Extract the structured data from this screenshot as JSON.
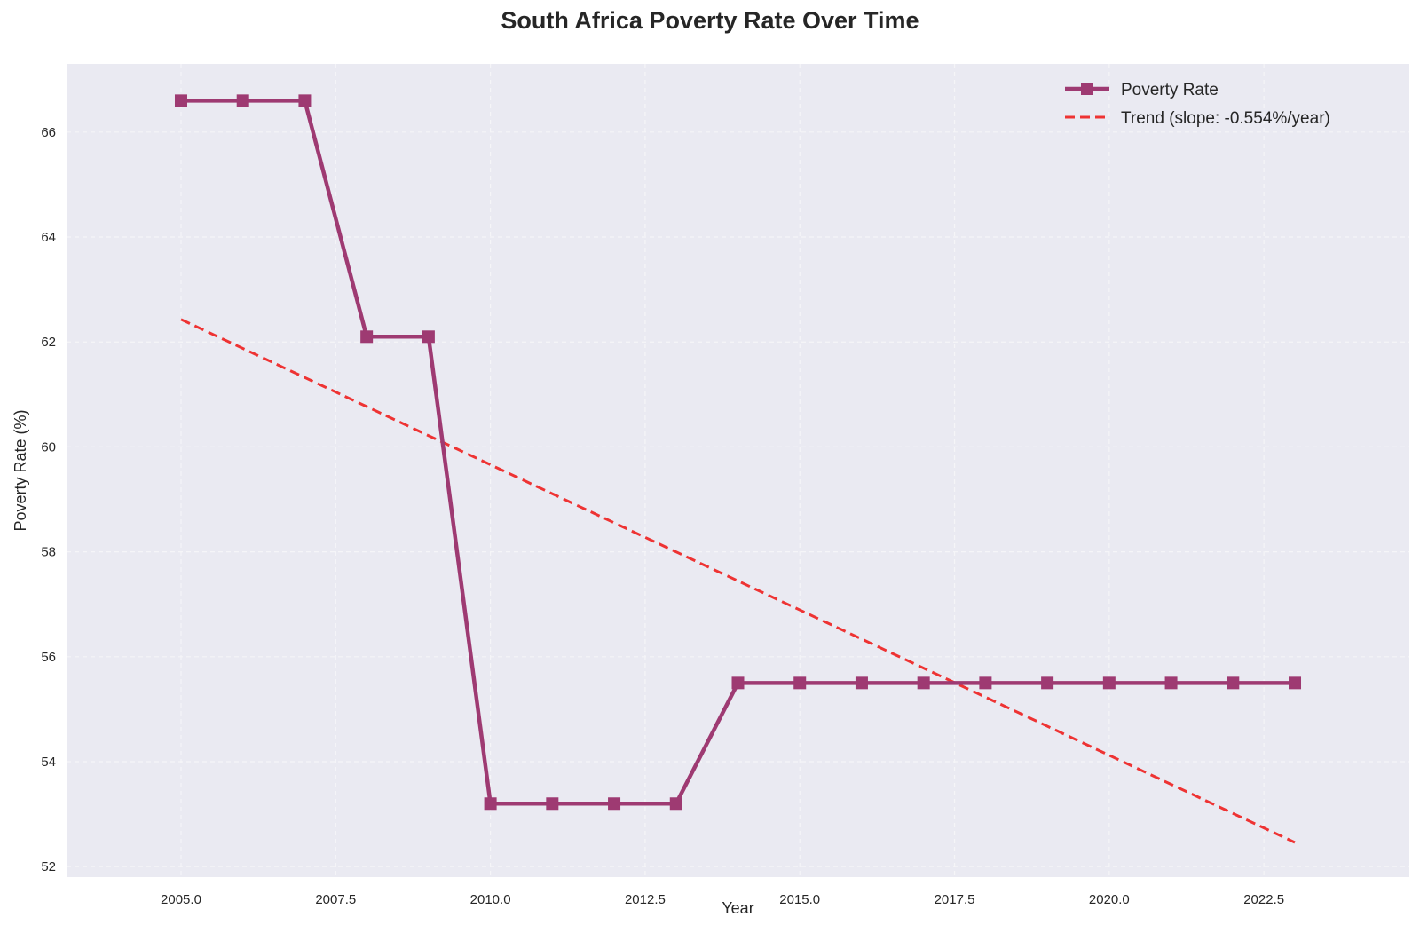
{
  "chart_data": {
    "type": "line",
    "title": "South Africa Poverty Rate Over Time",
    "xlabel": "Year",
    "ylabel": "Poverty Rate (%)",
    "xlim": [
      2003.15,
      2024.85
    ],
    "ylim": [
      51.8,
      67.3
    ],
    "x_ticks": [
      "2005.0",
      "2007.5",
      "2010.0",
      "2012.5",
      "2015.0",
      "2017.5",
      "2020.0",
      "2022.5"
    ],
    "y_ticks": [
      "52",
      "54",
      "56",
      "58",
      "60",
      "62",
      "64",
      "66"
    ],
    "grid": true,
    "legend_position": "top-right",
    "x": [
      2005,
      2006,
      2007,
      2008,
      2009,
      2010,
      2011,
      2012,
      2013,
      2014,
      2015,
      2016,
      2017,
      2018,
      2019,
      2020,
      2021,
      2022,
      2023
    ],
    "series": [
      {
        "name": "Poverty Rate",
        "style": "solid-square-markers",
        "color": "#9E3A72",
        "values": [
          66.6,
          66.6,
          66.6,
          62.1,
          62.1,
          53.2,
          53.2,
          53.2,
          53.2,
          55.5,
          55.5,
          55.5,
          55.5,
          55.5,
          55.5,
          55.5,
          55.5,
          55.5,
          55.5
        ]
      },
      {
        "name": "Trend (slope: -0.554%/year)",
        "style": "dashed",
        "color": "#EE3333",
        "x": [
          2005,
          2023
        ],
        "values": [
          62.43,
          52.46
        ]
      }
    ]
  },
  "colors": {
    "plot_background": "#EAEAF2",
    "grid": "#F5F5F8"
  }
}
